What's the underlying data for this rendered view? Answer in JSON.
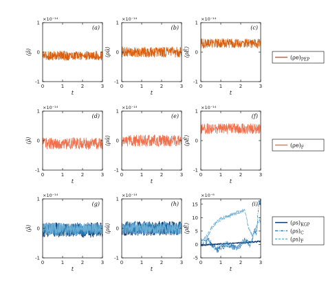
{
  "chart_data": [
    {
      "id": "a",
      "type": "line",
      "panel_label": "(a)",
      "ylabel": "⟨ρ̃⟩",
      "xlabel": "t",
      "exponent": "×10⁻¹⁴",
      "xlim": [
        0,
        3
      ],
      "ylim": [
        -1,
        1
      ],
      "xticks": [
        0,
        1,
        2,
        3
      ],
      "yticks": [
        -1,
        0,
        1
      ],
      "grid": false,
      "series": [
        {
          "name": "(ρe)PEP",
          "color": "#d95f0e",
          "mean": -0.12,
          "amplitude": 0.16,
          "mean_profile": [
            [
              0,
              -0.12
            ],
            [
              3,
              -0.12
            ]
          ]
        }
      ]
    },
    {
      "id": "b",
      "type": "line",
      "panel_label": "(b)",
      "ylabel": "⟨ρũ⟩",
      "xlabel": "t",
      "exponent": "×10⁻¹⁴",
      "xlim": [
        0,
        3
      ],
      "ylim": [
        -1,
        1
      ],
      "xticks": [
        0,
        1,
        2,
        3
      ],
      "yticks": [
        -1,
        0,
        1
      ],
      "grid": false,
      "series": [
        {
          "name": "(ρe)PEP",
          "color": "#d95f0e",
          "mean": 0.0,
          "amplitude": 0.18,
          "mean_profile": [
            [
              0,
              0
            ],
            [
              3,
              0
            ]
          ]
        }
      ]
    },
    {
      "id": "c",
      "type": "line",
      "panel_label": "(c)",
      "ylabel": "⟨ρẼ⟩",
      "xlabel": "t",
      "exponent": "×10⁻¹⁴",
      "xlim": [
        0,
        3
      ],
      "ylim": [
        -1,
        1
      ],
      "xticks": [
        0,
        1,
        2,
        3
      ],
      "yticks": [
        -1,
        0,
        1
      ],
      "grid": false,
      "series": [
        {
          "name": "(ρe)PEP",
          "color": "#d95f0e",
          "mean": 0.3,
          "amplitude": 0.16,
          "mean_profile": [
            [
              0,
              0.3
            ],
            [
              3,
              0.3
            ]
          ]
        }
      ]
    },
    {
      "id": "d",
      "type": "line",
      "panel_label": "(d)",
      "ylabel": "⟨ρ̃⟩",
      "xlabel": "t",
      "exponent": "×10⁻¹⁴",
      "xlim": [
        0,
        3
      ],
      "ylim": [
        -1,
        1
      ],
      "xticks": [
        0,
        1,
        2,
        3
      ],
      "yticks": [
        -1,
        0,
        1
      ],
      "grid": false,
      "series": [
        {
          "name": "(ρe)F",
          "color": "#f0704c",
          "mean": -0.1,
          "amplitude": 0.2,
          "mean_profile": [
            [
              0,
              -0.1
            ],
            [
              3,
              -0.1
            ]
          ]
        }
      ]
    },
    {
      "id": "e",
      "type": "line",
      "panel_label": "(e)",
      "ylabel": "⟨ρũ⟩",
      "xlabel": "t",
      "exponent": "×10⁻¹⁴",
      "xlim": [
        0,
        3
      ],
      "ylim": [
        -1,
        1
      ],
      "xticks": [
        0,
        1,
        2,
        3
      ],
      "yticks": [
        -1,
        0,
        1
      ],
      "grid": false,
      "series": [
        {
          "name": "(ρe)F",
          "color": "#f0704c",
          "mean": 0.0,
          "amplitude": 0.2,
          "mean_profile": [
            [
              0,
              0
            ],
            [
              3,
              0
            ]
          ]
        }
      ]
    },
    {
      "id": "f",
      "type": "line",
      "panel_label": "(f)",
      "ylabel": "⟨ρẼ⟩",
      "xlabel": "t",
      "exponent": "×10⁻¹⁴",
      "xlim": [
        0,
        3
      ],
      "ylim": [
        -1,
        1
      ],
      "xticks": [
        0,
        1,
        2,
        3
      ],
      "yticks": [
        -1,
        0,
        1
      ],
      "grid": false,
      "series": [
        {
          "name": "(ρe)F",
          "color": "#f0704c",
          "mean": 0.4,
          "amplitude": 0.18,
          "mean_profile": [
            [
              0,
              0.4
            ],
            [
              3,
              0.4
            ]
          ]
        }
      ]
    },
    {
      "id": "g",
      "type": "line",
      "panel_label": "(g)",
      "ylabel": "⟨ρ̃⟩",
      "xlabel": "t",
      "exponent": "×10⁻¹⁴",
      "xlim": [
        0,
        3
      ],
      "ylim": [
        -1,
        1
      ],
      "xticks": [
        0,
        1,
        2,
        3
      ],
      "yticks": [
        -1,
        0,
        1
      ],
      "grid": false,
      "series": [
        {
          "name": "(ρs)KGP",
          "color": "#08306b",
          "mean": -0.05,
          "amplitude": 0.26,
          "mean_profile": [
            [
              0,
              -0.05
            ],
            [
              3,
              -0.05
            ]
          ]
        },
        {
          "name": "(ρs)C",
          "color": "#2c7fb8",
          "mean": -0.05,
          "amplitude": 0.22,
          "mean_profile": [
            [
              0,
              -0.05
            ],
            [
              3,
              -0.05
            ]
          ]
        },
        {
          "name": "(ρs)F",
          "color": "#6baed6",
          "mean": 0.0,
          "amplitude": 0.2,
          "mean_profile": [
            [
              0,
              0
            ],
            [
              3,
              0
            ]
          ]
        }
      ]
    },
    {
      "id": "h",
      "type": "line",
      "panel_label": "(h)",
      "ylabel": "⟨ρũ⟩",
      "xlabel": "t",
      "exponent": "×10⁻¹⁴",
      "xlim": [
        0,
        3
      ],
      "ylim": [
        -1,
        1
      ],
      "xticks": [
        0,
        1,
        2,
        3
      ],
      "yticks": [
        -1,
        0,
        1
      ],
      "grid": false,
      "series": [
        {
          "name": "(ρs)KGP",
          "color": "#08306b",
          "mean": 0.0,
          "amplitude": 0.25,
          "mean_profile": [
            [
              0,
              0
            ],
            [
              3,
              0
            ]
          ]
        },
        {
          "name": "(ρs)C",
          "color": "#2c7fb8",
          "mean": 0.0,
          "amplitude": 0.22,
          "mean_profile": [
            [
              0,
              0
            ],
            [
              3,
              0
            ]
          ]
        },
        {
          "name": "(ρs)F",
          "color": "#6baed6",
          "mean": 0.0,
          "amplitude": 0.2,
          "mean_profile": [
            [
              0,
              0
            ],
            [
              3,
              0
            ]
          ]
        }
      ]
    },
    {
      "id": "i",
      "type": "line",
      "panel_label": "(i)",
      "ylabel": "⟨ρẼ⟩",
      "xlabel": "t",
      "exponent": "×10⁻⁸",
      "xlim": [
        0,
        3
      ],
      "ylim": [
        -5,
        17
      ],
      "xticks": [
        0,
        1,
        2,
        3
      ],
      "yticks": [
        -5,
        0,
        5,
        10,
        15
      ],
      "grid": false,
      "series": [
        {
          "name": "(ρs)KGP",
          "color": "#08306b",
          "dash": "solid",
          "amplitude": 0.25,
          "mean_profile": [
            [
              0,
              -0.3
            ],
            [
              1,
              0.2
            ],
            [
              2,
              0.6
            ],
            [
              2.6,
              0.9
            ],
            [
              3,
              1.2
            ]
          ]
        },
        {
          "name": "(ρs)C",
          "color": "#2c7fb8",
          "dash": "dashdot",
          "amplitude": 1.2,
          "mean_profile": [
            [
              0,
              0.5
            ],
            [
              0.4,
              1.5
            ],
            [
              0.8,
              -2
            ],
            [
              1.3,
              0.2
            ],
            [
              1.8,
              -1.5
            ],
            [
              2.2,
              1.5
            ],
            [
              2.5,
              0
            ],
            [
              2.7,
              5
            ],
            [
              2.8,
              4
            ],
            [
              2.9,
              16
            ],
            [
              3,
              15.5
            ]
          ]
        },
        {
          "name": "(ρs)F",
          "color": "#6baed6",
          "dash": "dashed",
          "amplitude": 0.8,
          "mean_profile": [
            [
              0,
              1.5
            ],
            [
              0.3,
              3
            ],
            [
              0.6,
              7
            ],
            [
              1,
              9.5
            ],
            [
              1.5,
              11
            ],
            [
              1.9,
              12
            ],
            [
              2.2,
              13
            ],
            [
              2.4,
              6
            ],
            [
              2.6,
              3
            ],
            [
              2.9,
              8.5
            ],
            [
              3,
              9
            ]
          ]
        }
      ]
    }
  ],
  "legends": [
    {
      "id": "legend-row1",
      "entries": [
        {
          "label": "(ρe)",
          "subscript": "PEP",
          "color": "#d95f0e",
          "dash": "solid"
        }
      ]
    },
    {
      "id": "legend-row2",
      "entries": [
        {
          "label": "(ρe)",
          "subscript": "F",
          "color": "#f0704c",
          "dash": "solid"
        }
      ]
    },
    {
      "id": "legend-row3",
      "entries": [
        {
          "label": "(ρs)",
          "subscript": "KGP",
          "color": "#08306b",
          "dash": "solid"
        },
        {
          "label": "(ρs)",
          "subscript": "C",
          "color": "#2c7fb8",
          "dash": "dashdot"
        },
        {
          "label": "(ρs)",
          "subscript": "F",
          "color": "#6baed6",
          "dash": "dashed"
        }
      ]
    }
  ]
}
